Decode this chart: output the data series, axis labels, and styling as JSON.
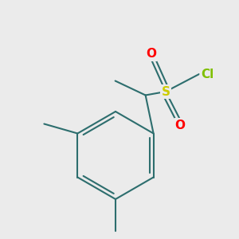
{
  "background_color": "#ebebeb",
  "bond_color": "#2d6e6e",
  "atom_colors": {
    "O": "#ff0000",
    "S": "#cccc00",
    "Cl": "#7fbf00"
  },
  "bond_width": 1.5,
  "font_size": 11
}
